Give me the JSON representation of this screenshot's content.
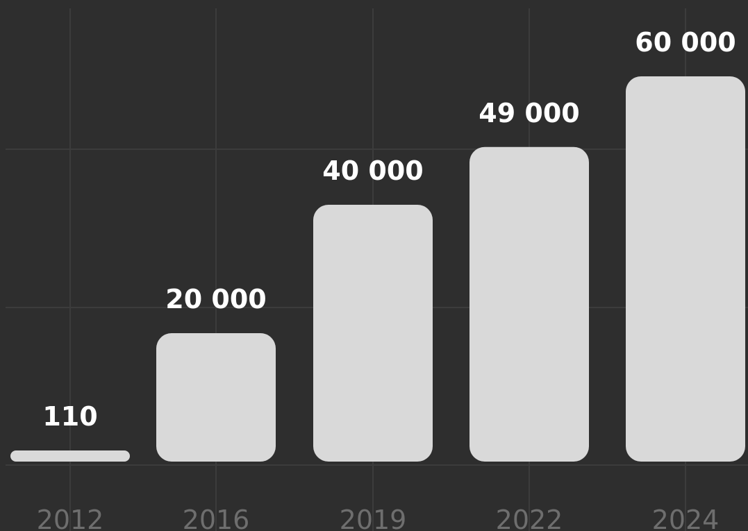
{
  "chart_data": {
    "type": "bar",
    "title": "",
    "xlabel": "",
    "ylabel": "",
    "categories": [
      "2012",
      "2016",
      "2019",
      "2022",
      "2024"
    ],
    "values": [
      110,
      20000,
      40000,
      49000,
      60000
    ],
    "data_labels": [
      "110",
      "20 000",
      "40 000",
      "49 000",
      "60 000"
    ],
    "ylim": [
      0,
      60000
    ],
    "grid": true,
    "legend": "none",
    "colors": {
      "background": "#2e2e2e",
      "bar": "#d9d9d9",
      "grid": "#3c3c3c",
      "value_label": "#ffffff",
      "tick_label": "#6e6e6e"
    }
  }
}
